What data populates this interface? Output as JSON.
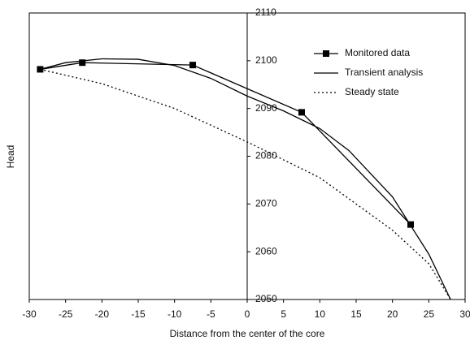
{
  "chart_data": {
    "type": "line",
    "x_label": "Distance from the center of the core",
    "y_label": "Head",
    "xlim": [
      -30,
      30
    ],
    "xticks": [
      -30,
      -25,
      -20,
      -15,
      -10,
      -5,
      0,
      5,
      10,
      15,
      20,
      25,
      30
    ],
    "ylim": [
      2050,
      2110
    ],
    "yticks": [
      2050,
      2060,
      2070,
      2080,
      2090,
      2100,
      2110
    ],
    "legend": "top-right",
    "series": [
      {
        "name": "Monitored data",
        "color": "#000000",
        "style": "solid-markers",
        "x": [
          -28.5,
          -22.7,
          -7.5,
          7.5,
          22.5
        ],
        "values": [
          2098.2,
          2099.6,
          2099.1,
          2089.2,
          2065.7
        ]
      },
      {
        "name": "Transient analysis",
        "color": "#000000",
        "style": "solid",
        "x": [
          -28.5,
          -25,
          -20,
          -15,
          -10,
          -5,
          0,
          5,
          10,
          14,
          20,
          25,
          28
        ],
        "values": [
          2098.2,
          2099.6,
          2100.4,
          2100.3,
          2099,
          2096.3,
          2092.6,
          2089.5,
          2085.8,
          2081.2,
          2071.5,
          2059.5,
          2050
        ]
      },
      {
        "name": "Steady state",
        "color": "#000000",
        "style": "dotted",
        "x": [
          -28.5,
          -20,
          -10,
          0,
          10,
          20,
          25,
          28
        ],
        "values": [
          2098.2,
          2095.2,
          2090,
          2083,
          2075.5,
          2064.5,
          2057.5,
          2050
        ]
      }
    ]
  }
}
